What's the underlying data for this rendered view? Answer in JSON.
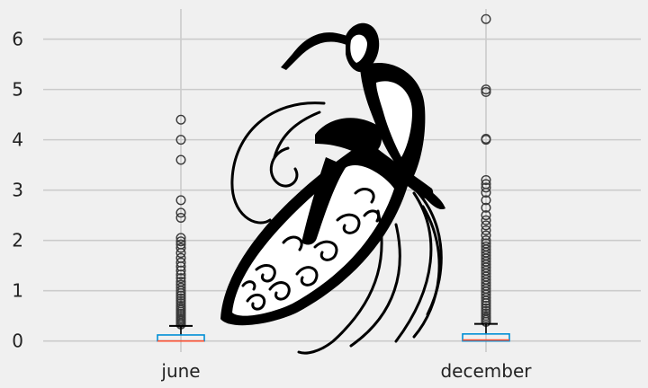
{
  "chart_data": {
    "type": "box",
    "title": "",
    "xlabel": "",
    "ylabel": "",
    "categories": [
      "june",
      "december"
    ],
    "ylim": [
      -0.22,
      6.6
    ],
    "yticks": [
      0,
      1,
      2,
      3,
      4,
      5,
      6
    ],
    "grid": true,
    "colors": {
      "background": "#f0f0f0",
      "grid": "#cbcbcb",
      "box": "#008fd5",
      "median": "#fc4f30",
      "whisker": "#000000",
      "outlier": "#3a3a3a"
    },
    "boxes": [
      {
        "category": "june",
        "q1": 0.0,
        "median": 0.0,
        "q3": 0.12,
        "whisker_low": 0.0,
        "whisker_high": 0.3,
        "fliers": [
          0.33,
          0.36,
          0.4,
          0.43,
          0.46,
          0.5,
          0.54,
          0.58,
          0.62,
          0.66,
          0.7,
          0.75,
          0.8,
          0.85,
          0.9,
          0.95,
          1.0,
          1.06,
          1.12,
          1.18,
          1.25,
          1.32,
          1.4,
          1.48,
          1.56,
          1.65,
          1.75,
          1.85,
          1.92,
          1.98,
          2.05,
          2.45,
          2.55,
          2.8,
          3.6,
          4.0,
          4.4
        ]
      },
      {
        "category": "december",
        "q1": 0.0,
        "median": 0.02,
        "q3": 0.14,
        "whisker_low": 0.0,
        "whisker_high": 0.34,
        "fliers": [
          0.38,
          0.42,
          0.46,
          0.5,
          0.55,
          0.6,
          0.65,
          0.7,
          0.75,
          0.8,
          0.86,
          0.92,
          0.98,
          1.04,
          1.1,
          1.16,
          1.22,
          1.28,
          1.34,
          1.4,
          1.46,
          1.52,
          1.58,
          1.64,
          1.7,
          1.76,
          1.82,
          1.88,
          1.94,
          2.0,
          2.1,
          2.2,
          2.3,
          2.4,
          2.5,
          2.65,
          2.8,
          2.95,
          3.05,
          3.12,
          3.2,
          4.0,
          4.02,
          4.95,
          5.0,
          6.4
        ]
      }
    ]
  },
  "decoration": {
    "icon": "surfer-illustration"
  }
}
